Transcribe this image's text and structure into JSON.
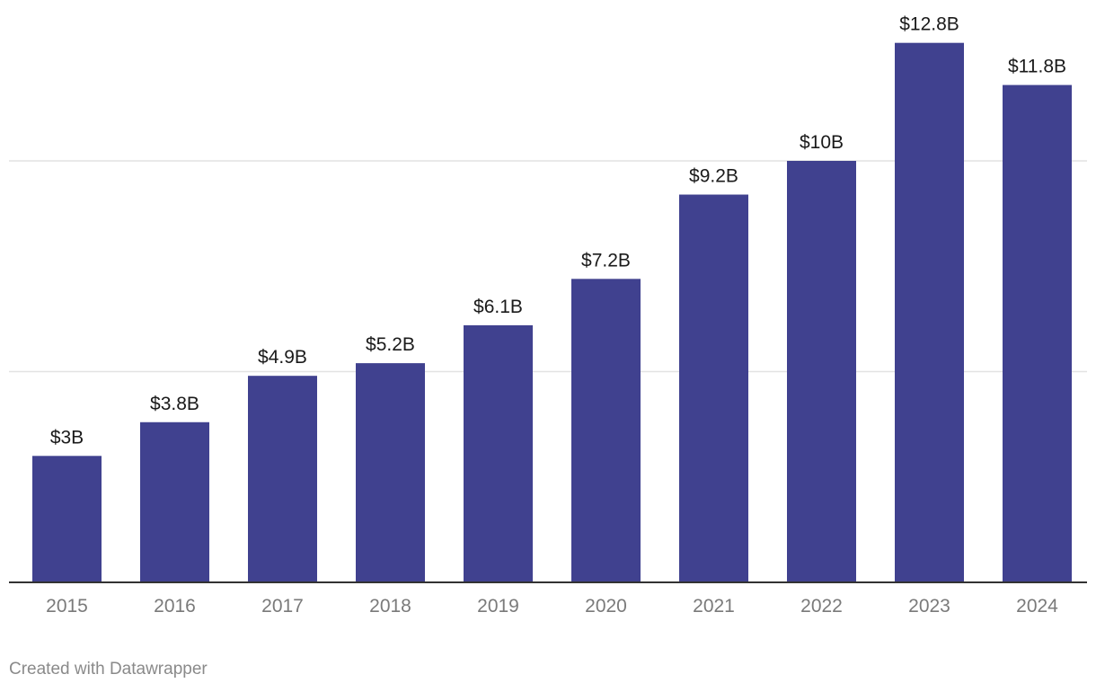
{
  "chart_data": {
    "type": "bar",
    "categories": [
      "2015",
      "2016",
      "2017",
      "2018",
      "2019",
      "2020",
      "2021",
      "2022",
      "2023",
      "2024"
    ],
    "values": [
      3,
      3.8,
      4.9,
      5.2,
      6.1,
      7.2,
      9.2,
      10,
      12.8,
      11.8
    ],
    "value_labels": [
      "$3B",
      "$3.8B",
      "$4.9B",
      "$5.2B",
      "$6.1B",
      "$7.2B",
      "$9.2B",
      "$10B",
      "$12.8B",
      "$11.8B"
    ],
    "title": "",
    "xlabel": "",
    "ylabel": "",
    "ylim": [
      0,
      13.5
    ],
    "gridlines": [
      5,
      10
    ],
    "grid": true,
    "bar_color": "#40418f"
  },
  "footer": {
    "credit": "Created with Datawrapper"
  }
}
